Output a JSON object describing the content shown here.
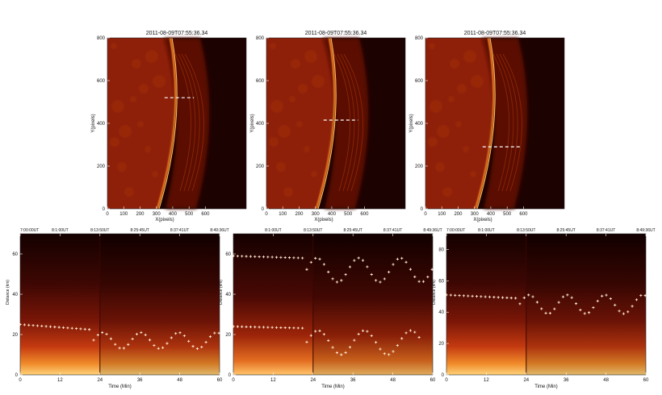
{
  "top_panels": [
    {
      "title": "2011-08-09T07:55:36.34",
      "xlabel": "X(pixels)",
      "ylabel": "Y(pixels)",
      "xticks": [
        "0",
        "100",
        "200",
        "300",
        "400",
        "500",
        "600"
      ],
      "yticks": [
        "0",
        "200",
        "400",
        "600",
        "800"
      ],
      "slit": {
        "y": 520,
        "x_from": 350,
        "x_to": 530
      }
    },
    {
      "title": "2011-08-09T07:55:36.34",
      "xlabel": "X(pixels)",
      "ylabel": "Y(pixels)",
      "xticks": [
        "0",
        "100",
        "200",
        "300",
        "400",
        "500",
        "600"
      ],
      "yticks": [
        "0",
        "200",
        "400",
        "600",
        "800"
      ],
      "slit": {
        "y": 415,
        "x_from": 350,
        "x_to": 560
      }
    },
    {
      "title": "2011-08-09T07:55:36.34",
      "xlabel": "X(pixels)",
      "ylabel": "Y(pixels)",
      "xticks": [
        "0",
        "100",
        "200",
        "300",
        "400",
        "500",
        "600"
      ],
      "yticks": [
        "0",
        "200",
        "400",
        "600",
        "800"
      ],
      "slit": {
        "y": 290,
        "x_from": 350,
        "x_to": 580
      }
    }
  ],
  "bottom_panels": [
    {
      "xlabel": "Time (Min)",
      "ylabel": "Distance (km)",
      "xticks": [
        "0",
        "12",
        "24",
        "36",
        "48",
        "60"
      ],
      "yticks": [
        "0",
        "20",
        "40",
        "60"
      ],
      "top_times": [
        "7:00:00UT",
        "8:1:00UT",
        "8:13:50UT",
        "8:25:45UT",
        "8:37:41UT",
        "8:49:36UT"
      ]
    },
    {
      "xlabel": "Time (Min)",
      "ylabel": "Distance (km)",
      "xticks": [
        "0",
        "12",
        "24",
        "36",
        "48",
        "60"
      ],
      "yticks": [
        "0",
        "20",
        "40",
        "60"
      ],
      "top_times": [
        "",
        "8:1:00UT",
        "8:13:50UT",
        "8:25:45UT",
        "8:37:41UT",
        "8:49:36UT"
      ]
    },
    {
      "xlabel": "Time (Min)",
      "ylabel": "Distance (km)",
      "xticks": [
        "0",
        "12",
        "24",
        "36",
        "48",
        "60"
      ],
      "yticks": [
        "0",
        "20",
        "40",
        "60",
        "80"
      ],
      "top_times": [
        "7:00:00UT",
        "8:1:00UT",
        "8:13:50UT",
        "8:25:45UT",
        "8:37:41UT",
        "8:49:36UT"
      ]
    }
  ],
  "colors": {
    "solar_dark": "#1c0201",
    "solar_mid": "#7a1607",
    "solar_bright": "#ffb347",
    "marker": "#ffe8d0"
  }
}
